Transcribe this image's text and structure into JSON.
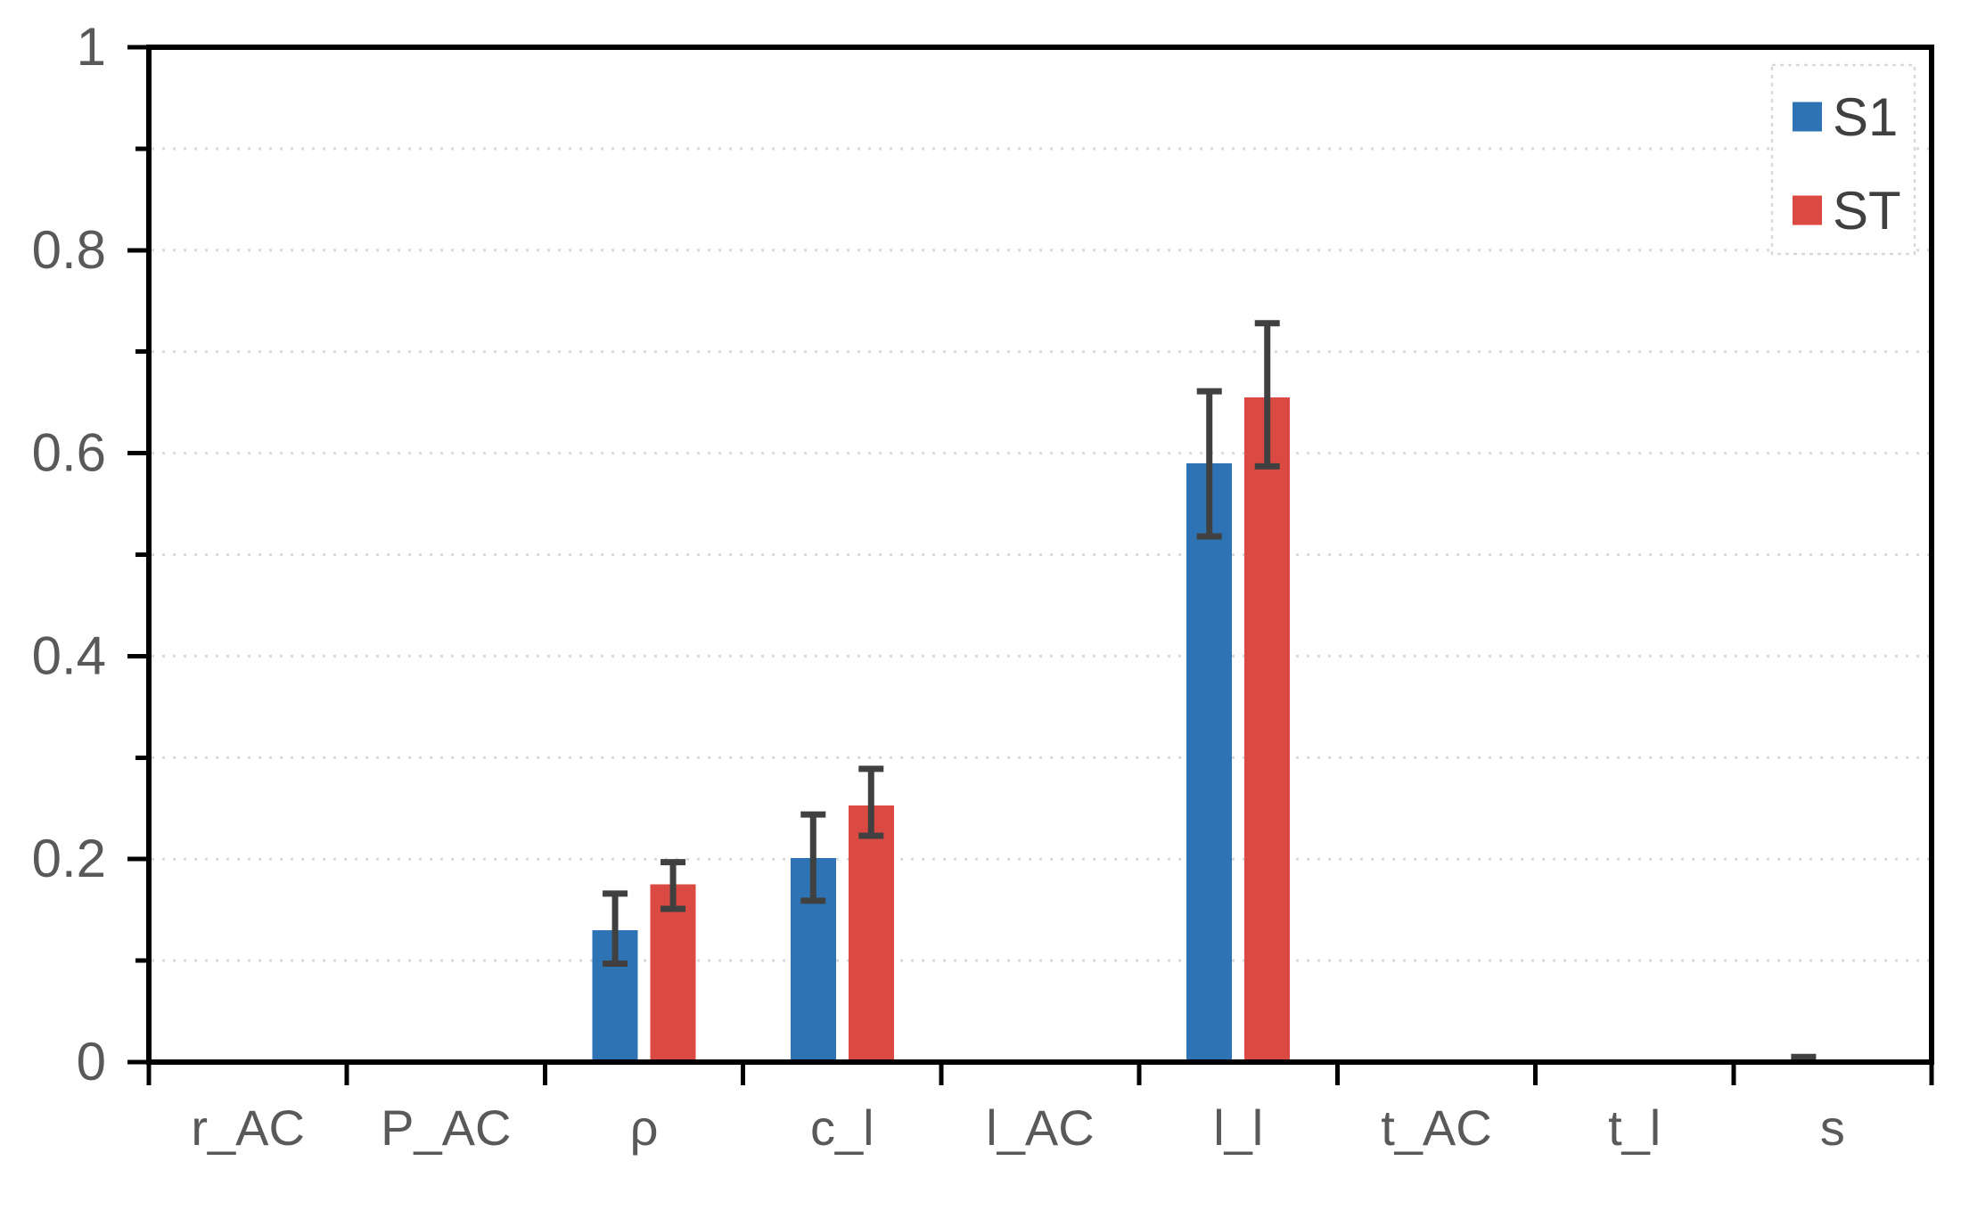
{
  "chart_data": {
    "type": "bar",
    "title": "",
    "xlabel": "",
    "ylabel": "",
    "categories": [
      "r_AC",
      "P_AC",
      "ρ",
      "c_l",
      "l_AC",
      "l_l",
      "t_AC",
      "t_l",
      "s"
    ],
    "series": [
      {
        "name": "S1",
        "color": "#2E74B5",
        "values": [
          0,
          0,
          0.13,
          0.201,
          0,
          0.59,
          0,
          0,
          0
        ],
        "err_plus": [
          0,
          0,
          0.036,
          0.043,
          0,
          0.071,
          0,
          0,
          0.005
        ],
        "err_minus": [
          0,
          0,
          0.033,
          0.042,
          0,
          0.072,
          0,
          0,
          0
        ]
      },
      {
        "name": "ST",
        "color": "#DB4A42",
        "values": [
          0,
          0,
          0.175,
          0.253,
          0,
          0.655,
          0,
          0,
          0
        ],
        "err_plus": [
          0,
          0,
          0.022,
          0.036,
          0,
          0.073,
          0,
          0,
          0
        ],
        "err_minus": [
          0,
          0,
          0.024,
          0.03,
          0,
          0.068,
          0,
          0,
          0
        ]
      }
    ],
    "ylim": [
      0,
      1
    ],
    "ytick_labels": [
      "0",
      "0.2",
      "0.4",
      "0.6",
      "0.8",
      "1"
    ],
    "ytick_values": [
      0,
      0.2,
      0.4,
      0.6,
      0.8,
      1
    ],
    "minor_tick_step": 0.1,
    "grid": {
      "show": true,
      "style": "dotted",
      "step": 0.1,
      "color": "#D9D9D9"
    },
    "legend": {
      "position": "top-right",
      "entries": [
        "S1",
        "ST"
      ],
      "border_style": "dotted"
    },
    "colors": {
      "axis": "#000000",
      "tick_label": "#595959",
      "error_bar": "#404040",
      "legend_text": "#404040",
      "legend_border": "#D9D9D9",
      "background": "#FFFFFF"
    }
  }
}
